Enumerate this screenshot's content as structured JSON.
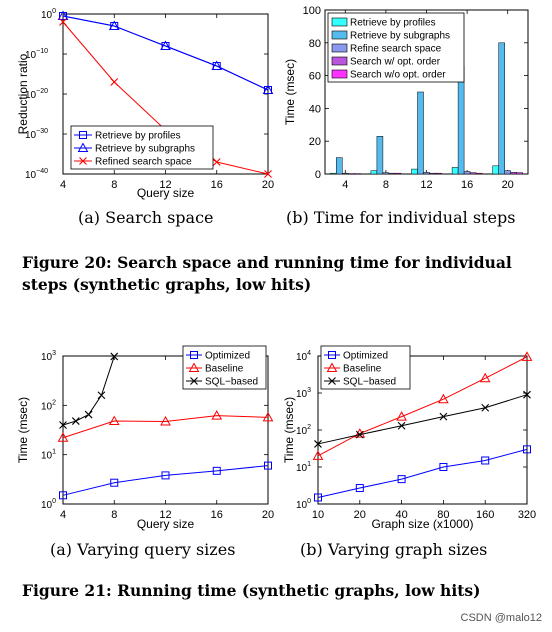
{
  "chart_data": [
    {
      "id": "fig20a",
      "type": "line",
      "y_scale": "log",
      "x": [
        4,
        8,
        12,
        16,
        20
      ],
      "xlabel": "Query size",
      "ylabel": "Reduction ratio",
      "xlim": [
        4,
        20
      ],
      "ylim_exp": [
        -40,
        0
      ],
      "xticks": [
        "4",
        "8",
        "12",
        "16",
        "20"
      ],
      "yticks": [
        {
          "base": "10",
          "exp": "0"
        },
        {
          "base": "10",
          "exp": "−10"
        },
        {
          "base": "10",
          "exp": "−20"
        },
        {
          "base": "10",
          "exp": "−30"
        },
        {
          "base": "10",
          "exp": "−40"
        }
      ],
      "legend_position": "bottom-left",
      "series": [
        {
          "name": "Retrieve by profiles",
          "marker": "square",
          "color": "#0000ff",
          "values_exp": [
            -0.5,
            -3,
            -8,
            -13,
            -19
          ]
        },
        {
          "name": "Retrieve by subgraphs",
          "marker": "triangle",
          "color": "#0000ff",
          "values_exp": [
            -0.5,
            -3,
            -8,
            -13,
            -19
          ]
        },
        {
          "name": "Refined search space",
          "marker": "x",
          "color": "#ff0000",
          "values_exp": [
            -2,
            -17,
            -29,
            -37,
            -40
          ]
        }
      ]
    },
    {
      "id": "fig20b",
      "type": "bar",
      "categories": [
        "4",
        "8",
        "12",
        "16",
        "20"
      ],
      "xlabel": "",
      "ylabel": "Time (msec)",
      "ylim": [
        0,
        100
      ],
      "yticks": [
        "0",
        "20",
        "40",
        "60",
        "80",
        "100"
      ],
      "legend_position": "top-left",
      "series": [
        {
          "name": "Retrieve by profiles",
          "color": "#33ffff",
          "values": [
            0.5,
            2,
            3,
            4,
            5
          ]
        },
        {
          "name": "Retrieve by subgraphs",
          "color": "#55bbee",
          "values": [
            10,
            23,
            50,
            66,
            80
          ]
        },
        {
          "name": "Refine search space",
          "color": "#8899ee",
          "values": [
            0.5,
            0.8,
            1,
            1.5,
            2
          ]
        },
        {
          "name": "Search w/ opt. order",
          "color": "#bb55dd",
          "values": [
            0.3,
            0.5,
            0.5,
            0.8,
            1
          ]
        },
        {
          "name": "Search w/o opt. order",
          "color": "#ff33ff",
          "values": [
            0.3,
            0.5,
            0.5,
            0.5,
            0.8
          ]
        }
      ]
    },
    {
      "id": "fig21a",
      "type": "line",
      "y_scale": "log",
      "x": [
        4,
        6,
        8,
        12,
        16,
        20
      ],
      "xlabel": "Query size",
      "ylabel": "Time (msec)",
      "xlim": [
        4,
        20
      ],
      "ylim_exp": [
        0,
        3
      ],
      "xticks": [
        "4",
        "8",
        "12",
        "16",
        "20"
      ],
      "yticks": [
        {
          "base": "10",
          "exp": "0"
        },
        {
          "base": "10",
          "exp": "1"
        },
        {
          "base": "10",
          "exp": "2"
        },
        {
          "base": "10",
          "exp": "3"
        }
      ],
      "legend_position": "top-right",
      "series": [
        {
          "name": "Optimized",
          "marker": "square",
          "color": "#0000ff",
          "x": [
            4,
            8,
            12,
            16,
            20
          ],
          "values": [
            1.5,
            2.7,
            3.8,
            4.7,
            6
          ]
        },
        {
          "name": "Baseline",
          "marker": "triangle",
          "color": "#ff0000",
          "x": [
            4,
            8,
            12,
            16,
            20
          ],
          "values": [
            22,
            48,
            47,
            62,
            57
          ]
        },
        {
          "name": "SQL−based",
          "marker": "x",
          "color": "#000000",
          "x": [
            4,
            5,
            6,
            7,
            8
          ],
          "values": [
            40,
            48,
            65,
            160,
            980
          ]
        }
      ]
    },
    {
      "id": "fig21b",
      "type": "line",
      "y_scale": "log",
      "x": [
        10,
        20,
        40,
        80,
        160,
        320
      ],
      "categories": [
        "10",
        "20",
        "40",
        "80",
        "160",
        "320"
      ],
      "xlabel": "Graph size (x1000)",
      "ylabel": "Time (msec)",
      "ylim_exp": [
        0,
        4
      ],
      "yticks": [
        {
          "base": "10",
          "exp": "0"
        },
        {
          "base": "10",
          "exp": "1"
        },
        {
          "base": "10",
          "exp": "2"
        },
        {
          "base": "10",
          "exp": "3"
        },
        {
          "base": "10",
          "exp": "4"
        }
      ],
      "legend_position": "top-left",
      "series": [
        {
          "name": "Optimized",
          "marker": "square",
          "color": "#0000ff",
          "values": [
            1.5,
            2.7,
            4.7,
            10,
            15,
            30
          ]
        },
        {
          "name": "Baseline",
          "marker": "triangle",
          "color": "#ff0000",
          "values": [
            20,
            80,
            230,
            680,
            2500,
            9500
          ]
        },
        {
          "name": "SQL−based",
          "marker": "x",
          "color": "#000000",
          "values": [
            42,
            75,
            130,
            230,
            400,
            900
          ]
        }
      ]
    }
  ],
  "captions": {
    "a20": "(a) Search space",
    "b20": "(b) Time for individual steps",
    "fig20": "Figure 20: Search space and running time for individual steps (synthetic graphs, low hits)",
    "a21": "(a) Varying query sizes",
    "b21": "(b) Varying graph sizes",
    "fig21": "Figure 21: Running time (synthetic graphs, low hits)"
  },
  "watermark": "CSDN @malo12"
}
